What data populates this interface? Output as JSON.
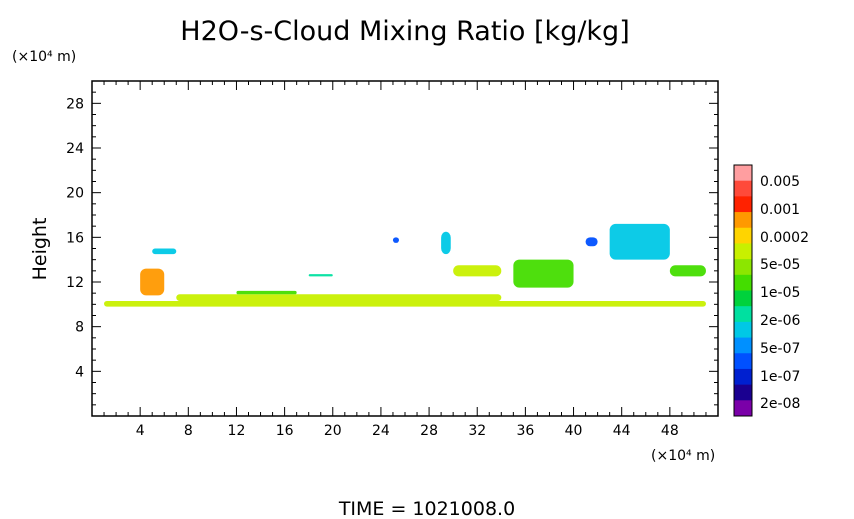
{
  "chart_data": {
    "type": "heatmap",
    "title": "H2O-s-Cloud Mixing Ratio [kg/kg]",
    "ylabel": "Height",
    "xlabel": "",
    "x_unit": "(×10⁴ m)",
    "y_unit": "(×10⁴ m)",
    "footer": "TIME = 1021008.0",
    "xlim": [
      0,
      52
    ],
    "ylim": [
      0,
      30
    ],
    "x_ticks": [
      4,
      8,
      12,
      16,
      20,
      24,
      28,
      32,
      36,
      40,
      44,
      48
    ],
    "y_ticks": [
      4,
      8,
      12,
      16,
      20,
      24,
      28
    ],
    "x_tick_labels": [
      "4",
      "8",
      "12",
      "16",
      "20",
      "24",
      "28",
      "32",
      "36",
      "40",
      "44",
      "48"
    ],
    "y_tick_labels": [
      "4",
      "8",
      "12",
      "16",
      "20",
      "24",
      "28"
    ],
    "colorbar": {
      "labels": [
        "0.005",
        "0.001",
        "0.0002",
        "5e-05",
        "1e-05",
        "2e-06",
        "5e-07",
        "1e-07",
        "2e-08"
      ],
      "colors": [
        "#ff9ea0",
        "#ff4a3a",
        "#ff2200",
        "#ff9900",
        "#ffd400",
        "#c8f000",
        "#8ce600",
        "#44dd00",
        "#00d23c",
        "#00e0a0",
        "#00c8e6",
        "#0090ff",
        "#0050ff",
        "#0020d0",
        "#1a0090",
        "#7a00a8"
      ]
    },
    "cloud_features": [
      {
        "x": [
          1,
          51
        ],
        "y": [
          9.8,
          10.3
        ],
        "level": "5e-05"
      },
      {
        "x": [
          7,
          34
        ],
        "y": [
          10.3,
          10.9
        ],
        "level": "5e-05"
      },
      {
        "x": [
          12,
          17
        ],
        "y": [
          10.9,
          11.2
        ],
        "level": "1e-05"
      },
      {
        "x": [
          4,
          6
        ],
        "y": [
          10.8,
          13.2
        ],
        "level": "0.0002"
      },
      {
        "x": [
          5,
          7
        ],
        "y": [
          14.5,
          15
        ],
        "level": "5e-07"
      },
      {
        "x": [
          18,
          20
        ],
        "y": [
          12.5,
          12.7
        ],
        "level": "2e-06"
      },
      {
        "x": [
          25,
          25.5
        ],
        "y": [
          15.5,
          16
        ],
        "level": "1e-07"
      },
      {
        "x": [
          29,
          29.8
        ],
        "y": [
          14.5,
          16.5
        ],
        "level": "5e-07"
      },
      {
        "x": [
          30,
          34
        ],
        "y": [
          12.5,
          13.5
        ],
        "level": "5e-05"
      },
      {
        "x": [
          35,
          40
        ],
        "y": [
          11.5,
          14
        ],
        "level": "1e-05"
      },
      {
        "x": [
          41,
          42
        ],
        "y": [
          15.2,
          16
        ],
        "level": "1e-07"
      },
      {
        "x": [
          43,
          48
        ],
        "y": [
          14,
          17.2
        ],
        "level": "5e-07"
      },
      {
        "x": [
          48,
          51
        ],
        "y": [
          12.5,
          13.5
        ],
        "level": "1e-05"
      }
    ]
  }
}
